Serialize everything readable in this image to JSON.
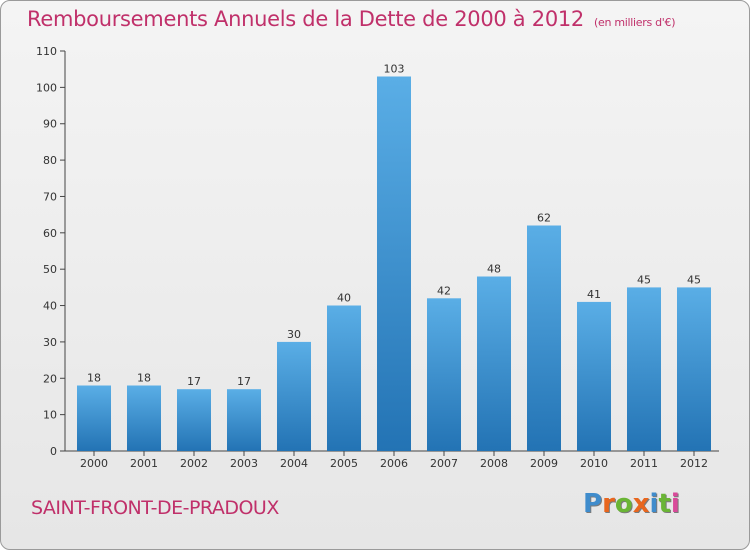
{
  "chart_data": {
    "type": "bar",
    "title": "Remboursements Annuels de la Dette de 2000 à 2012",
    "subtitle": "(en milliers d'€)",
    "categories": [
      "2000",
      "2001",
      "2002",
      "2003",
      "2004",
      "2005",
      "2006",
      "2007",
      "2008",
      "2009",
      "2010",
      "2011",
      "2012"
    ],
    "values": [
      18,
      18,
      17,
      17,
      30,
      40,
      103,
      42,
      48,
      62,
      41,
      45,
      45
    ],
    "ylim": [
      0,
      110
    ],
    "yticks": [
      0,
      10,
      20,
      30,
      40,
      50,
      60,
      70,
      80,
      90,
      100,
      110
    ],
    "xlabel": "",
    "ylabel": "",
    "grid": false,
    "colors": {
      "bar_top": "#5aaee6",
      "bar_bottom": "#2373b4",
      "text": "#333333",
      "accent": "#c0306a"
    }
  },
  "commune": "SAINT-FRONT-DE-PRADOUX",
  "logo": {
    "letters": [
      "P",
      "r",
      "o",
      "x",
      "i",
      "t",
      "i"
    ],
    "colors": [
      "#3f8ccc",
      "#e8661e",
      "#6ab535",
      "#e8661e",
      "#3f8ccc",
      "#6ab535",
      "#d94a9a"
    ]
  }
}
